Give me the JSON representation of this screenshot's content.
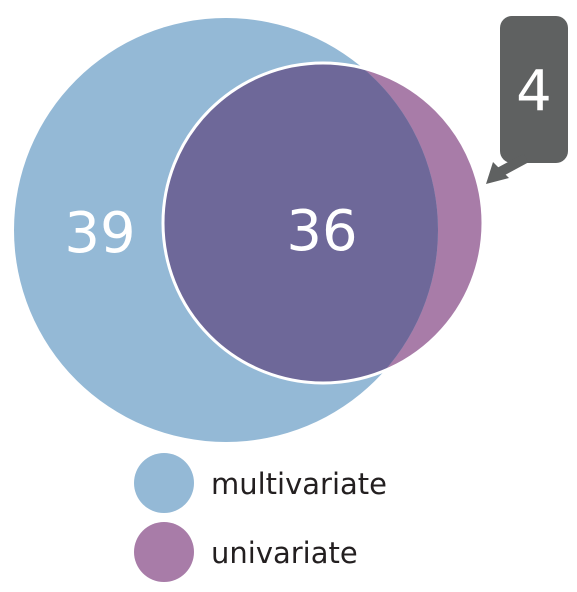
{
  "diagram": {
    "type": "venn",
    "sets": [
      {
        "name": "multivariate",
        "color": "#94b9d6"
      },
      {
        "name": "univariate",
        "color": "#a87ca8"
      }
    ],
    "regions": {
      "multivariate_only": "39",
      "both": "36",
      "univariate_only": "4"
    },
    "colors": {
      "overlap": "#6e6899",
      "callout": "#5f6161",
      "outline": "#ffffff"
    }
  },
  "legend": {
    "items": [
      {
        "label": "multivariate",
        "color": "#94b9d6"
      },
      {
        "label": "univariate",
        "color": "#a87ca8"
      }
    ]
  }
}
